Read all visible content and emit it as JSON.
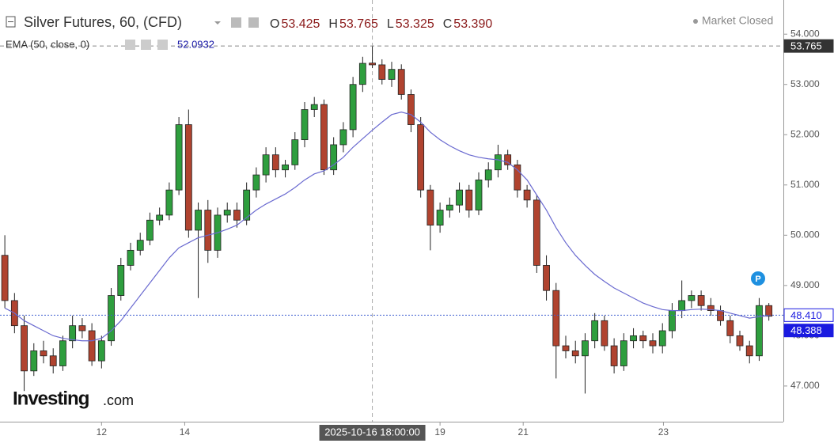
{
  "chart_data": {
    "type": "candlestick",
    "title": "Silver Futures, 60, (CFD)",
    "status": "Market Closed",
    "brand": "Investing",
    "brand_suffix": ".com",
    "ohlc": [
      {
        "key": "O",
        "value": 53.425,
        "label": "53.425"
      },
      {
        "key": "H",
        "value": 53.765,
        "label": "53.765"
      },
      {
        "key": "L",
        "value": 53.325,
        "label": "53.325"
      },
      {
        "key": "C",
        "value": 53.39,
        "label": "53.390"
      }
    ],
    "indicator": {
      "name": "EMA (50, close, 0)",
      "value": 52.0932,
      "color": "#6a6ad0"
    },
    "up_color": "#2e9e3e",
    "down_color": "#b0432f",
    "x": [
      0,
      1,
      2,
      3,
      4,
      5,
      6,
      7,
      8,
      9,
      10,
      11,
      12,
      13,
      14,
      15,
      16,
      17,
      18,
      19,
      20,
      21,
      22,
      23,
      24,
      25,
      26,
      27,
      28,
      29,
      30,
      31,
      32,
      33,
      34,
      35,
      36,
      37,
      38,
      39,
      40,
      41,
      42,
      43,
      44,
      45,
      46,
      47,
      48,
      49,
      50,
      51,
      52,
      53,
      54,
      55,
      56,
      57,
      58,
      59,
      60,
      61,
      62,
      63,
      64,
      65,
      66,
      67,
      68,
      69,
      70,
      71,
      72,
      73,
      74,
      75,
      76,
      77,
      78,
      79
    ],
    "open": [
      49.6,
      48.7,
      48.2,
      47.3,
      47.7,
      47.6,
      47.4,
      47.9,
      48.2,
      48.1,
      47.5,
      47.9,
      48.8,
      49.4,
      49.7,
      49.9,
      50.3,
      50.4,
      50.9,
      52.2,
      50.1,
      50.5,
      49.7,
      50.4,
      50.5,
      50.3,
      50.9,
      51.2,
      51.6,
      51.3,
      51.4,
      51.9,
      52.5,
      52.6,
      51.3,
      51.8,
      52.1,
      53.0,
      53.425,
      53.39,
      53.1,
      53.3,
      52.8,
      52.2,
      50.9,
      50.2,
      50.5,
      50.6,
      50.9,
      50.5,
      51.1,
      51.3,
      51.6,
      51.4,
      50.9,
      50.7,
      49.4,
      48.9,
      47.8,
      47.7,
      47.6,
      47.9,
      48.3,
      47.8,
      47.4,
      47.9,
      48.0,
      47.9,
      47.8,
      48.1,
      48.5,
      48.7,
      48.8,
      48.6,
      48.5,
      48.3,
      48.0,
      47.8,
      47.6,
      48.6
    ],
    "high": [
      50.0,
      48.85,
      48.4,
      47.85,
      47.9,
      47.75,
      48.0,
      48.4,
      48.35,
      48.25,
      48.0,
      48.95,
      49.55,
      49.85,
      50.05,
      50.45,
      50.55,
      51.05,
      52.35,
      52.5,
      50.65,
      50.7,
      50.55,
      50.65,
      50.65,
      51.05,
      51.35,
      51.75,
      51.75,
      51.5,
      52.05,
      52.65,
      52.75,
      52.7,
      51.95,
      52.25,
      53.15,
      53.55,
      53.765,
      53.5,
      53.45,
      53.4,
      52.9,
      52.35,
      51.0,
      50.65,
      50.75,
      51.05,
      51.0,
      51.25,
      51.45,
      51.8,
      51.7,
      51.5,
      51.0,
      50.8,
      49.6,
      49.05,
      48.0,
      47.9,
      48.05,
      48.45,
      48.4,
      47.95,
      48.05,
      48.15,
      48.1,
      48.05,
      48.25,
      48.65,
      49.1,
      48.9,
      48.9,
      48.75,
      48.6,
      48.4,
      48.1,
      47.9,
      48.75,
      48.65
    ],
    "low": [
      48.55,
      48.05,
      46.9,
      47.2,
      47.45,
      47.25,
      47.3,
      47.75,
      47.95,
      47.4,
      47.35,
      47.8,
      48.7,
      49.3,
      49.6,
      49.8,
      50.2,
      50.3,
      50.8,
      49.95,
      48.75,
      49.45,
      49.55,
      50.25,
      50.15,
      50.2,
      50.75,
      51.05,
      51.15,
      51.15,
      51.3,
      51.75,
      52.35,
      51.2,
      51.2,
      51.65,
      51.95,
      52.85,
      53.325,
      53.0,
      52.95,
      52.7,
      52.05,
      50.75,
      49.7,
      50.05,
      50.35,
      50.45,
      50.35,
      50.4,
      50.95,
      51.15,
      51.3,
      50.75,
      50.55,
      49.25,
      48.7,
      47.15,
      47.55,
      47.45,
      46.85,
      47.75,
      47.7,
      47.25,
      47.3,
      47.75,
      47.75,
      47.65,
      47.65,
      47.95,
      48.35,
      48.55,
      48.5,
      48.4,
      48.2,
      47.85,
      47.7,
      47.45,
      47.5,
      48.3
    ],
    "close": [
      48.7,
      48.2,
      47.3,
      47.7,
      47.6,
      47.4,
      47.9,
      48.2,
      48.1,
      47.5,
      47.9,
      48.8,
      49.4,
      49.7,
      49.9,
      50.3,
      50.4,
      50.9,
      52.2,
      50.1,
      50.5,
      49.7,
      50.4,
      50.5,
      50.3,
      50.9,
      51.2,
      51.6,
      51.3,
      51.4,
      51.9,
      52.5,
      52.6,
      51.3,
      51.8,
      52.1,
      53.0,
      53.42,
      53.39,
      53.1,
      53.3,
      52.8,
      52.2,
      50.9,
      50.2,
      50.5,
      50.6,
      50.9,
      50.5,
      51.1,
      51.3,
      51.6,
      51.4,
      50.9,
      50.7,
      49.4,
      48.9,
      47.8,
      47.7,
      47.6,
      47.9,
      48.3,
      47.8,
      47.4,
      47.9,
      48.0,
      47.9,
      47.8,
      48.1,
      48.5,
      48.7,
      48.8,
      48.6,
      48.5,
      48.3,
      48.0,
      47.8,
      47.6,
      48.6,
      48.388
    ],
    "ema": [
      48.55,
      48.45,
      48.3,
      48.2,
      48.1,
      48.0,
      47.95,
      47.92,
      47.9,
      47.9,
      47.95,
      48.1,
      48.3,
      48.55,
      48.8,
      49.05,
      49.3,
      49.55,
      49.75,
      49.85,
      49.95,
      50.0,
      50.05,
      50.12,
      50.2,
      50.35,
      50.5,
      50.62,
      50.72,
      50.82,
      50.95,
      51.1,
      51.22,
      51.28,
      51.4,
      51.55,
      51.75,
      51.92,
      52.09,
      52.25,
      52.4,
      52.45,
      52.4,
      52.25,
      52.05,
      51.9,
      51.78,
      51.68,
      51.6,
      51.55,
      51.52,
      51.5,
      51.45,
      51.3,
      51.1,
      50.8,
      50.5,
      50.15,
      49.85,
      49.6,
      49.4,
      49.22,
      49.08,
      48.95,
      48.85,
      48.75,
      48.65,
      48.58,
      48.52,
      48.5,
      48.5,
      48.52,
      48.53,
      48.52,
      48.5,
      48.45,
      48.4,
      48.35,
      48.38,
      48.4
    ],
    "xlim": [
      -0.5,
      80.5
    ],
    "ylim": [
      46.29,
      54.68
    ],
    "yticks": [
      {
        "value": 47,
        "label": "47.000"
      },
      {
        "value": 48,
        "label": "48.000"
      },
      {
        "value": 49,
        "label": "49.000"
      },
      {
        "value": 50,
        "label": "50.000"
      },
      {
        "value": 51,
        "label": "51.000"
      },
      {
        "value": 52,
        "label": "52.000"
      },
      {
        "value": 53,
        "label": "53.000"
      },
      {
        "value": 54,
        "label": "54.000"
      }
    ],
    "xticks": [
      {
        "value": 10,
        "label": "12"
      },
      {
        "value": 18.6,
        "label": "14"
      },
      {
        "value": 45,
        "label": "19"
      },
      {
        "value": 53.6,
        "label": "21"
      },
      {
        "value": 68.1,
        "label": "23"
      }
    ],
    "crosshair": {
      "value": 38,
      "label": "2025-10-16 18:00:00"
    },
    "price_labels": [
      {
        "value": 53.765,
        "label": "53.765",
        "style": "high"
      },
      {
        "value": 48.41,
        "label": "48.410",
        "style": "outline"
      },
      {
        "value": 48.388,
        "label": "48.388",
        "style": "filled"
      }
    ]
  }
}
